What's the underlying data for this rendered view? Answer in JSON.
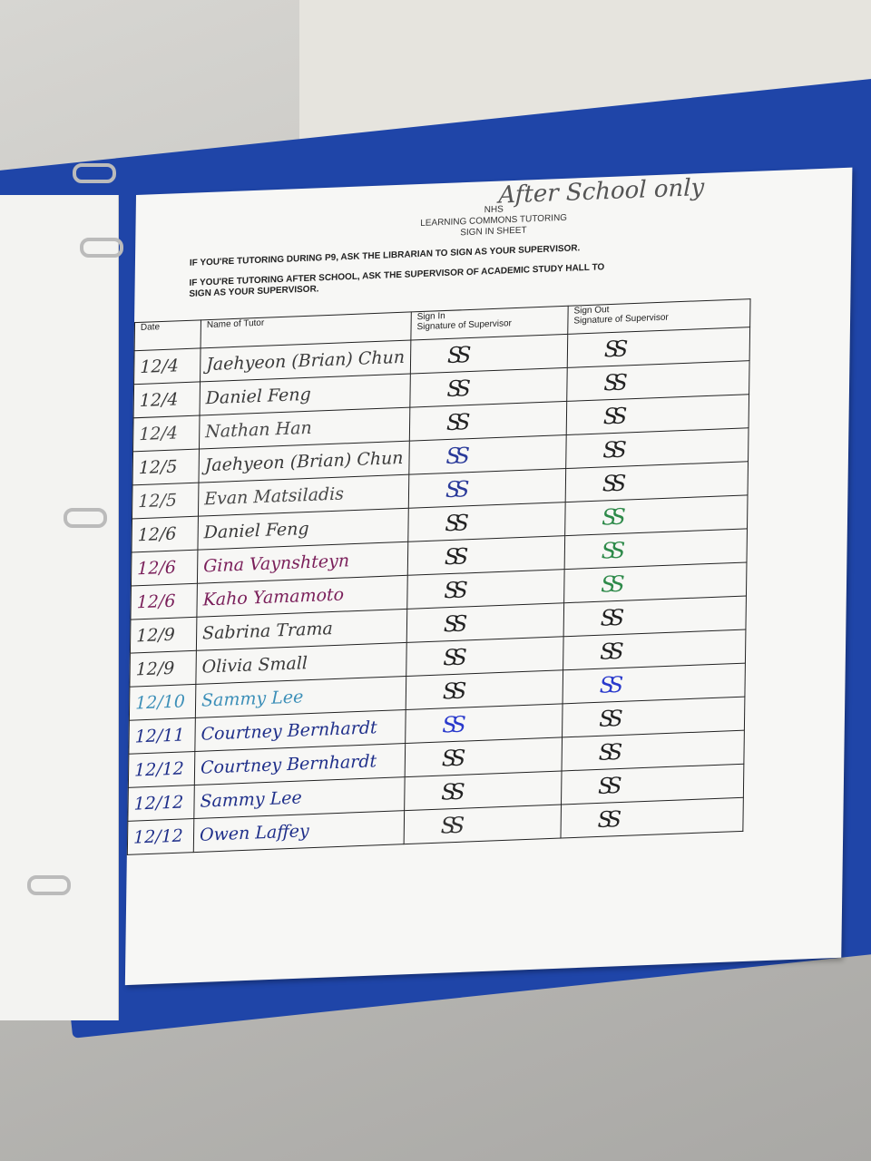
{
  "sheet": {
    "title_lines": [
      "NHS",
      "LEARNING COMMONS TUTORING",
      "SIGN IN SHEET"
    ],
    "handwritten_note": "After School only",
    "instructions": [
      "IF YOU'RE TUTORING DURING P9, ASK THE LIBRARIAN TO SIGN AS YOUR SUPERVISOR.",
      "IF YOU'RE TUTORING AFTER SCHOOL, ASK THE SUPERVISOR OF ACADEMIC STUDY HALL TO SIGN AS YOUR SUPERVISOR."
    ],
    "columns": [
      "Date",
      "Name of Tutor",
      "Sign In\nSignature of Supervisor",
      "Sign Out\nSignature of Supervisor"
    ],
    "signature_mark": "SS",
    "rows": [
      {
        "date": "12/4",
        "name": "Jaehyeon (Brian) Chun",
        "ink": "#3a3a3a",
        "in_ink": "#222",
        "out_ink": "#222"
      },
      {
        "date": "12/4",
        "name": "Daniel Feng",
        "ink": "#3a3a3a",
        "in_ink": "#222",
        "out_ink": "#222"
      },
      {
        "date": "12/4",
        "name": "Nathan Han",
        "ink": "#4a4a4a",
        "in_ink": "#222",
        "out_ink": "#222"
      },
      {
        "date": "12/5",
        "name": "Jaehyeon (Brian) Chun",
        "ink": "#3a3a3a",
        "in_ink": "#2a3a9a",
        "out_ink": "#222"
      },
      {
        "date": "12/5",
        "name": "Evan Matsiladis",
        "ink": "#4a4a4a",
        "in_ink": "#2a3a9a",
        "out_ink": "#222"
      },
      {
        "date": "12/6",
        "name": "Daniel Feng",
        "ink": "#3a3a3a",
        "in_ink": "#222",
        "out_ink": "#2e8a4a"
      },
      {
        "date": "12/6",
        "name": "Gina Vaynshteyn",
        "ink": "#7a1f5a",
        "in_ink": "#222",
        "out_ink": "#2e8a4a"
      },
      {
        "date": "12/6",
        "name": "Kaho Yamamoto",
        "ink": "#7a1f5a",
        "in_ink": "#222",
        "out_ink": "#2e8a4a"
      },
      {
        "date": "12/9",
        "name": "Sabrina Trama",
        "ink": "#3a3a3a",
        "in_ink": "#222",
        "out_ink": "#222"
      },
      {
        "date": "12/9",
        "name": "Olivia Small",
        "ink": "#3a3a3a",
        "in_ink": "#222",
        "out_ink": "#222"
      },
      {
        "date": "12/10",
        "name": "Sammy Lee",
        "ink": "#3c8fb8",
        "in_ink": "#222",
        "out_ink": "#2a3acc"
      },
      {
        "date": "12/11",
        "name": "Courtney Bernhardt",
        "ink": "#1f2f8a",
        "in_ink": "#2a3acc",
        "out_ink": "#222"
      },
      {
        "date": "12/12",
        "name": "Courtney Bernhardt",
        "ink": "#1f2f8a",
        "in_ink": "#222",
        "out_ink": "#222"
      },
      {
        "date": "12/12",
        "name": "Sammy Lee",
        "ink": "#1f2f8a",
        "in_ink": "#222",
        "out_ink": "#222"
      },
      {
        "date": "12/12",
        "name": "Owen Laffey",
        "ink": "#1f2f8a",
        "in_ink": "#333",
        "out_ink": "#222"
      }
    ]
  }
}
